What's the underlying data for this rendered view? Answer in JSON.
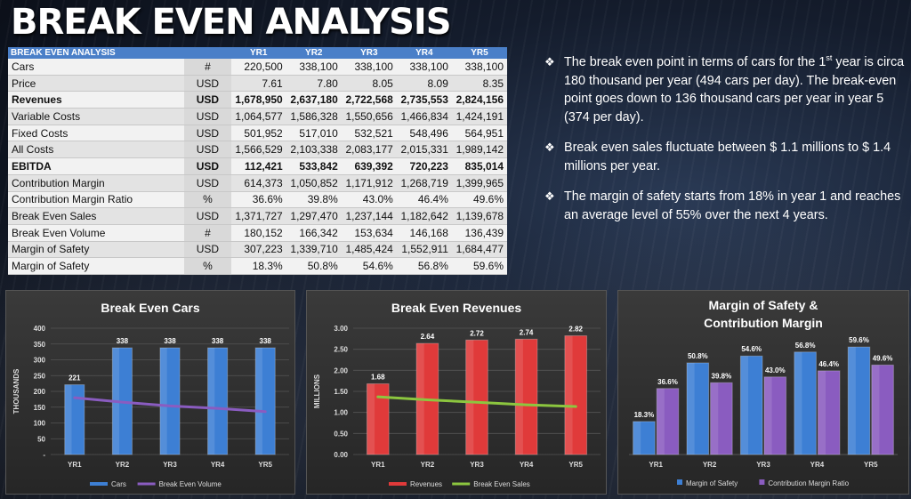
{
  "title": "BREAK EVEN ANALYSIS",
  "table": {
    "header": [
      "BREAK EVEN ANALYSIS",
      "",
      "YR1",
      "YR2",
      "YR3",
      "YR4",
      "YR5"
    ],
    "rows": [
      {
        "label": "Cars",
        "unit": "#",
        "values": [
          "220,500",
          "338,100",
          "338,100",
          "338,100",
          "338,100"
        ],
        "bold": false
      },
      {
        "label": "Price",
        "unit": "USD",
        "values": [
          "7.61",
          "7.80",
          "8.05",
          "8.09",
          "8.35"
        ],
        "bold": false
      },
      {
        "label": "Revenues",
        "unit": "USD",
        "values": [
          "1,678,950",
          "2,637,180",
          "2,722,568",
          "2,735,553",
          "2,824,156"
        ],
        "bold": true
      },
      {
        "label": "Variable Costs",
        "unit": "USD",
        "values": [
          "1,064,577",
          "1,586,328",
          "1,550,656",
          "1,466,834",
          "1,424,191"
        ],
        "bold": false
      },
      {
        "label": "Fixed Costs",
        "unit": "USD",
        "values": [
          "501,952",
          "517,010",
          "532,521",
          "548,496",
          "564,951"
        ],
        "bold": false
      },
      {
        "label": "All Costs",
        "unit": "USD",
        "values": [
          "1,566,529",
          "2,103,338",
          "2,083,177",
          "2,015,331",
          "1,989,142"
        ],
        "bold": false
      },
      {
        "label": "EBITDA",
        "unit": "USD",
        "values": [
          "112,421",
          "533,842",
          "639,392",
          "720,223",
          "835,014"
        ],
        "bold": true
      },
      {
        "label": "Contribution Margin",
        "unit": "USD",
        "values": [
          "614,373",
          "1,050,852",
          "1,171,912",
          "1,268,719",
          "1,399,965"
        ],
        "bold": false
      },
      {
        "label": "Contribution Margin Ratio",
        "unit": "%",
        "values": [
          "36.6%",
          "39.8%",
          "43.0%",
          "46.4%",
          "49.6%"
        ],
        "bold": false
      },
      {
        "label": "Break Even Sales",
        "unit": "USD",
        "values": [
          "1,371,727",
          "1,297,470",
          "1,237,144",
          "1,182,642",
          "1,139,678"
        ],
        "bold": false
      },
      {
        "label": "Break Even Volume",
        "unit": "#",
        "values": [
          "180,152",
          "166,342",
          "153,634",
          "146,168",
          "136,439"
        ],
        "bold": false
      },
      {
        "label": "Margin of Safety",
        "unit": "USD",
        "values": [
          "307,223",
          "1,339,710",
          "1,485,424",
          "1,552,911",
          "1,684,477"
        ],
        "bold": false
      },
      {
        "label": "Margin of Safety",
        "unit": "%",
        "values": [
          "18.3%",
          "50.8%",
          "54.6%",
          "56.8%",
          "59.6%"
        ],
        "bold": false
      }
    ]
  },
  "bullets": [
    {
      "pre": "The break even point in terms of cars for the 1",
      "sup": "st",
      "post": " year is circa 180 thousand per year (494 cars per day). The break-even point goes down to 136 thousand cars per year in year 5 (374 per day)."
    },
    {
      "pre": "Break even sales fluctuate between $ 1.1 millions to $ 1.4 millions per year.",
      "sup": "",
      "post": ""
    },
    {
      "pre": "The margin of safety starts from 18% in year 1 and reaches an average level of 55% over the next 4 years.",
      "sup": "",
      "post": ""
    }
  ],
  "colors": {
    "blue": "#3d7fd4",
    "purple": "#8a5cc0",
    "red": "#e03a3a",
    "green": "#8cc63f"
  },
  "chart_data": [
    {
      "type": "bar",
      "title": "Break Even Cars",
      "ylabel": "THOUSANDS",
      "categories": [
        "YR1",
        "YR2",
        "YR3",
        "YR4",
        "YR5"
      ],
      "ylim": [
        0,
        400
      ],
      "yticks": [
        "-",
        "50",
        "100",
        "150",
        "200",
        "250",
        "300",
        "350",
        "400"
      ],
      "series": [
        {
          "name": "Cars",
          "kind": "bar",
          "color": "#3d7fd4",
          "values": [
            221,
            338,
            338,
            338,
            338
          ],
          "labels": [
            "221",
            "338",
            "338",
            "338",
            "338"
          ]
        },
        {
          "name": "Break Even Volume",
          "kind": "line",
          "color": "#8a5cc0",
          "values": [
            180,
            166,
            154,
            146,
            136
          ]
        }
      ]
    },
    {
      "type": "bar",
      "title": "Break Even Revenues",
      "ylabel": "MILLIONS",
      "categories": [
        "YR1",
        "YR2",
        "YR3",
        "YR4",
        "YR5"
      ],
      "ylim": [
        0,
        3
      ],
      "yticks": [
        "0.00",
        "0.50",
        "1.00",
        "1.50",
        "2.00",
        "2.50",
        "3.00"
      ],
      "series": [
        {
          "name": "Revenues",
          "kind": "bar",
          "color": "#e03a3a",
          "values": [
            1.68,
            2.64,
            2.72,
            2.74,
            2.82
          ],
          "labels": [
            "1.68",
            "2.64",
            "2.72",
            "2.74",
            "2.82"
          ]
        },
        {
          "name": "Break Even Sales",
          "kind": "line",
          "color": "#8cc63f",
          "values": [
            1.37,
            1.3,
            1.24,
            1.18,
            1.14
          ]
        }
      ]
    },
    {
      "type": "bar",
      "title": "Margin of Safety & Contribution Margin",
      "categories": [
        "YR1",
        "YR2",
        "YR3",
        "YR4",
        "YR5"
      ],
      "ylim": [
        0,
        70
      ],
      "series": [
        {
          "name": "Margin of Safety",
          "kind": "bar",
          "color": "#3d7fd4",
          "values": [
            18.3,
            50.8,
            54.6,
            56.8,
            59.6
          ],
          "labels": [
            "18.3%",
            "50.8%",
            "54.6%",
            "56.8%",
            "59.6%"
          ]
        },
        {
          "name": "Contribution Margin Ratio",
          "kind": "bar",
          "color": "#8a5cc0",
          "values": [
            36.6,
            39.8,
            43.0,
            46.4,
            49.6
          ],
          "labels": [
            "36.6%",
            "39.8%",
            "43.0%",
            "46.4%",
            "49.6%"
          ]
        }
      ]
    }
  ]
}
